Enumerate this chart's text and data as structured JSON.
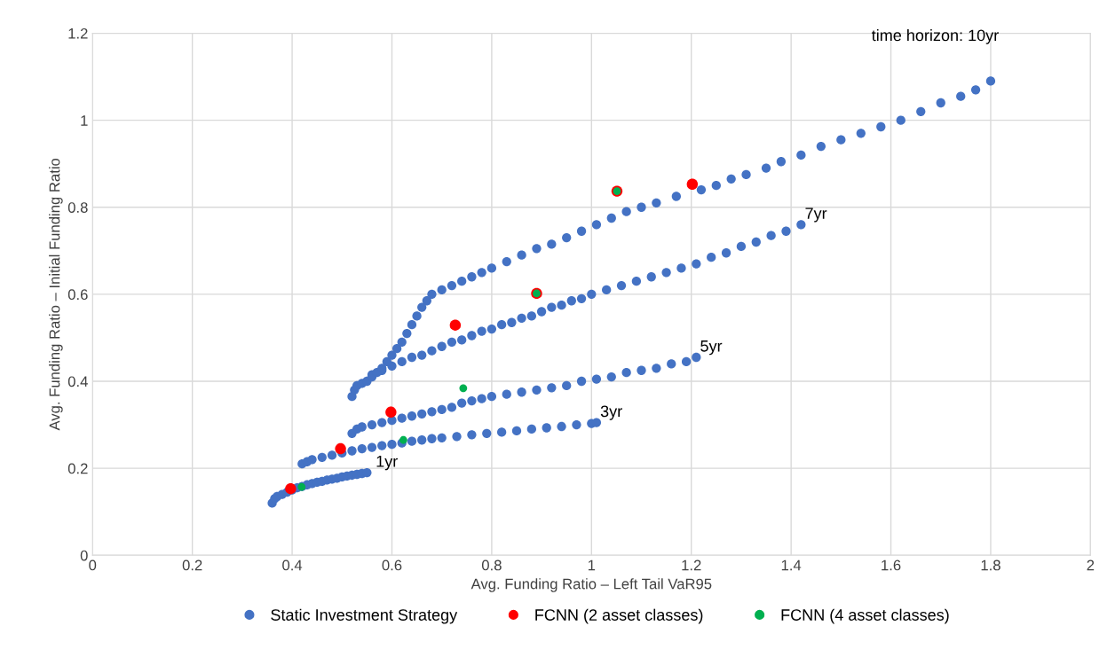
{
  "chart_data": {
    "type": "scatter",
    "xlabel": "Avg. Funding Ratio – Left Tail VaR95",
    "ylabel": "Avg. Funding Ratio – Initial Funding Ratio",
    "xlim": [
      0,
      2
    ],
    "xticks": [
      0,
      0.2,
      0.4,
      0.6,
      0.8,
      1,
      1.2,
      1.4,
      1.6,
      1.8,
      2
    ],
    "ylim": [
      0,
      1.2
    ],
    "yticks": [
      0,
      0.2,
      0.4,
      0.6,
      0.8,
      1,
      1.2
    ],
    "grid": true,
    "legend": "bottom",
    "marker": "circle",
    "series": [
      {
        "name": "Static Investment Strategy",
        "color": "#4472c4",
        "x": [
          0.36,
          0.365,
          0.37,
          0.38,
          0.39,
          0.4,
          0.41,
          0.42,
          0.43,
          0.44,
          0.45,
          0.46,
          0.47,
          0.48,
          0.49,
          0.5,
          0.51,
          0.52,
          0.53,
          0.54,
          0.55,
          0.42,
          0.43,
          0.44,
          0.46,
          0.48,
          0.5,
          0.52,
          0.54,
          0.56,
          0.58,
          0.6,
          0.62,
          0.64,
          0.66,
          0.68,
          0.7,
          0.73,
          0.76,
          0.79,
          0.82,
          0.85,
          0.88,
          0.91,
          0.94,
          0.97,
          1.0,
          1.01,
          0.52,
          0.53,
          0.54,
          0.56,
          0.58,
          0.6,
          0.62,
          0.64,
          0.66,
          0.68,
          0.7,
          0.72,
          0.74,
          0.76,
          0.78,
          0.8,
          0.83,
          0.86,
          0.89,
          0.92,
          0.95,
          0.98,
          1.01,
          1.04,
          1.07,
          1.1,
          1.13,
          1.16,
          1.19,
          1.21,
          0.56,
          0.58,
          0.6,
          0.62,
          0.64,
          0.66,
          0.68,
          0.7,
          0.72,
          0.74,
          0.76,
          0.78,
          0.8,
          0.82,
          0.84,
          0.86,
          0.88,
          0.9,
          0.92,
          0.94,
          0.96,
          0.98,
          1.0,
          1.03,
          1.06,
          1.09,
          1.12,
          1.15,
          1.18,
          1.21,
          1.24,
          1.27,
          1.3,
          1.33,
          1.36,
          1.39,
          1.42,
          0.52,
          0.525,
          0.53,
          0.54,
          0.55,
          0.56,
          0.57,
          0.58,
          0.59,
          0.6,
          0.61,
          0.62,
          0.63,
          0.64,
          0.65,
          0.66,
          0.67,
          0.68,
          0.7,
          0.72,
          0.74,
          0.76,
          0.78,
          0.8,
          0.83,
          0.86,
          0.89,
          0.92,
          0.95,
          0.98,
          1.01,
          1.04,
          1.07,
          1.1,
          1.13,
          1.17,
          1.22,
          1.25,
          1.28,
          1.31,
          1.35,
          1.38,
          1.42,
          1.46,
          1.5,
          1.54,
          1.58,
          1.62,
          1.66,
          1.7,
          1.74,
          1.77,
          1.8
        ],
        "values": [
          0.12,
          0.13,
          0.135,
          0.14,
          0.145,
          0.15,
          0.155,
          0.158,
          0.162,
          0.165,
          0.168,
          0.17,
          0.173,
          0.175,
          0.177,
          0.18,
          0.182,
          0.184,
          0.186,
          0.188,
          0.19,
          0.21,
          0.215,
          0.22,
          0.225,
          0.23,
          0.235,
          0.24,
          0.245,
          0.248,
          0.252,
          0.255,
          0.258,
          0.262,
          0.265,
          0.268,
          0.27,
          0.273,
          0.277,
          0.28,
          0.283,
          0.286,
          0.29,
          0.293,
          0.296,
          0.3,
          0.303,
          0.305,
          0.28,
          0.29,
          0.295,
          0.3,
          0.305,
          0.31,
          0.315,
          0.32,
          0.325,
          0.33,
          0.335,
          0.34,
          0.35,
          0.355,
          0.36,
          0.365,
          0.37,
          0.375,
          0.38,
          0.385,
          0.39,
          0.4,
          0.405,
          0.41,
          0.42,
          0.425,
          0.43,
          0.44,
          0.445,
          0.455,
          0.415,
          0.425,
          0.435,
          0.445,
          0.455,
          0.46,
          0.47,
          0.48,
          0.49,
          0.495,
          0.505,
          0.515,
          0.52,
          0.53,
          0.535,
          0.545,
          0.55,
          0.56,
          0.57,
          0.575,
          0.585,
          0.59,
          0.6,
          0.61,
          0.62,
          0.63,
          0.64,
          0.65,
          0.66,
          0.67,
          0.685,
          0.695,
          0.71,
          0.72,
          0.735,
          0.745,
          0.76,
          0.365,
          0.38,
          0.39,
          0.395,
          0.4,
          0.41,
          0.42,
          0.43,
          0.445,
          0.46,
          0.475,
          0.49,
          0.51,
          0.53,
          0.55,
          0.57,
          0.585,
          0.6,
          0.61,
          0.62,
          0.63,
          0.64,
          0.65,
          0.66,
          0.675,
          0.69,
          0.705,
          0.715,
          0.73,
          0.745,
          0.76,
          0.775,
          0.79,
          0.8,
          0.81,
          0.825,
          0.84,
          0.85,
          0.865,
          0.875,
          0.89,
          0.905,
          0.92,
          0.94,
          0.955,
          0.97,
          0.985,
          1.0,
          1.02,
          1.04,
          1.055,
          1.07,
          1.09
        ]
      },
      {
        "name": "FCNN (2 asset classes)",
        "color": "#ff0000",
        "x": [
          0.397,
          0.497,
          0.598,
          0.727,
          0.89,
          1.051,
          1.202
        ],
        "values": [
          0.153,
          0.245,
          0.329,
          0.529,
          0.602,
          0.837,
          0.853
        ]
      },
      {
        "name": "FCNN (4 asset classes)",
        "color": "#00b050",
        "x": [
          0.419,
          0.623,
          0.743,
          0.89,
          1.051
        ],
        "values": [
          0.157,
          0.265,
          0.384,
          0.602,
          0.837
        ]
      }
    ],
    "annotations": [
      {
        "text": "1yr",
        "x": 0.56,
        "y": 0.19
      },
      {
        "text": "3yr",
        "x": 1.01,
        "y": 0.305
      },
      {
        "text": "5yr",
        "x": 1.21,
        "y": 0.455
      },
      {
        "text": "7yr",
        "x": 1.42,
        "y": 0.76
      },
      {
        "text": "time horizon: 10yr",
        "x": 1.8,
        "y": 1.09
      }
    ]
  }
}
